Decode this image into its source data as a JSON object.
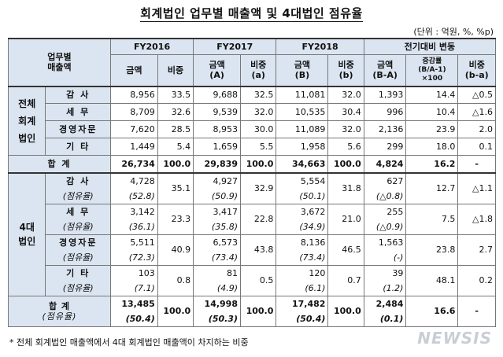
{
  "title": "회계법인 업무별 매출액 및 4대법인 점유율",
  "unit": "(단위 : 억원, %, %p)",
  "header": {
    "corner": [
      "업무별",
      "매출액"
    ],
    "fy2016": "FY2016",
    "fy2017": "FY2017",
    "fy2018": "FY2018",
    "change": "전기대비 변동",
    "amount": "금액",
    "ratio": "비중",
    "amount_a": [
      "금액",
      "(A)"
    ],
    "ratio_a": [
      "비중",
      "(a)"
    ],
    "amount_b": [
      "금액",
      "(B)"
    ],
    "ratio_b": [
      "비중",
      "(b)"
    ],
    "chg_amount": [
      "금액",
      "(B-A)"
    ],
    "chg_rate": [
      "증감률",
      "(B/A-1)",
      "×100"
    ],
    "chg_ratio": [
      "비중",
      "(b-a)"
    ]
  },
  "groups": {
    "all": "전체\n회계\n법인",
    "big4": "4대\n법인"
  },
  "all_rows": [
    {
      "label": "감 사",
      "v": [
        "8,956",
        "33.5",
        "9,688",
        "32.5",
        "11,081",
        "32.0",
        "1,393",
        "14.4",
        "△0.5"
      ]
    },
    {
      "label": "세 무",
      "v": [
        "8,709",
        "32.6",
        "9,539",
        "32.0",
        "10,535",
        "30.4",
        "996",
        "10.4",
        "△1.6"
      ]
    },
    {
      "label": "경영자문",
      "v": [
        "7,620",
        "28.5",
        "8,953",
        "30.0",
        "11,089",
        "32.0",
        "2,136",
        "23.9",
        "2.0"
      ]
    },
    {
      "label": "기 타",
      "v": [
        "1,449",
        "5.4",
        "1,659",
        "5.5",
        "1,958",
        "5.6",
        "299",
        "18.0",
        "0.1"
      ]
    },
    {
      "label": "합 계",
      "v": [
        "26,734",
        "100.0",
        "29,839",
        "100.0",
        "34,663",
        "100.0",
        "4,824",
        "16.2",
        "-"
      ]
    }
  ],
  "big4_rows": [
    {
      "label": "감 사",
      "share_label": "(점유율)",
      "v": [
        "4,728",
        "35.1",
        "4,927",
        "32.9",
        "5,554",
        "31.8",
        "627",
        "12.7",
        "△1.1"
      ],
      "s": [
        "(52.8)",
        "(50.9)",
        "(50.1)",
        "(△0.8)"
      ]
    },
    {
      "label": "세 무",
      "share_label": "(점유율)",
      "v": [
        "3,142",
        "23.3",
        "3,417",
        "22.8",
        "3,672",
        "21.0",
        "255",
        "7.5",
        "△1.8"
      ],
      "s": [
        "(36.1)",
        "(35.8)",
        "(34.9)",
        "(△0.9)"
      ]
    },
    {
      "label": "경영자문",
      "share_label": "(점유율)",
      "v": [
        "5,511",
        "40.9",
        "6,573",
        "43.8",
        "8,136",
        "46.5",
        "1,563",
        "23.8",
        "2.7"
      ],
      "s": [
        "(72.3)",
        "(73.4)",
        "(73.4)",
        "(-)"
      ]
    },
    {
      "label": "기 타",
      "share_label": "(점유율)",
      "v": [
        "103",
        "0.8",
        "81",
        "0.5",
        "120",
        "0.7",
        "39",
        "48.1",
        "0.2"
      ],
      "s": [
        "(7.1)",
        "(4.9)",
        "(6.1)",
        "(1.2)"
      ]
    },
    {
      "label": "합 계",
      "share_label": "(점유율)",
      "v": [
        "13,485",
        "100.0",
        "14,998",
        "100.0",
        "17,482",
        "100.0",
        "2,484",
        "16.6",
        "-"
      ],
      "s": [
        "(50.4)",
        "(50.3)",
        "(50.4)",
        "(0.1)"
      ]
    }
  ],
  "note": "* 전체 회계법인 매출액에서 4대 회계법인 매출액이 차지하는 비중",
  "watermark": "NEWSIS"
}
